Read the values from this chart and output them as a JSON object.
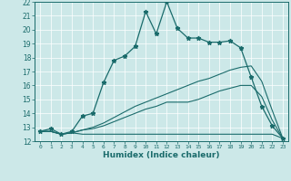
{
  "title": "",
  "xlabel": "Humidex (Indice chaleur)",
  "bg_color": "#cce8e8",
  "line_color": "#1a6b6b",
  "xlim": [
    -0.5,
    23.5
  ],
  "ylim": [
    12,
    22
  ],
  "xticks": [
    0,
    1,
    2,
    3,
    4,
    5,
    6,
    7,
    8,
    9,
    10,
    11,
    12,
    13,
    14,
    15,
    16,
    17,
    18,
    19,
    20,
    21,
    22,
    23
  ],
  "yticks": [
    12,
    13,
    14,
    15,
    16,
    17,
    18,
    19,
    20,
    21,
    22
  ],
  "line1_x": [
    0,
    1,
    2,
    3,
    4,
    5,
    6,
    7,
    8,
    9,
    10,
    11,
    12,
    13,
    14,
    15,
    16,
    17,
    18,
    19,
    20,
    21,
    22,
    23
  ],
  "line1_y": [
    12.7,
    12.9,
    12.5,
    12.7,
    13.8,
    14.0,
    16.2,
    17.8,
    18.1,
    18.8,
    21.3,
    19.7,
    22.0,
    20.1,
    19.4,
    19.4,
    19.1,
    19.1,
    19.2,
    18.7,
    16.6,
    14.5,
    13.1,
    12.2
  ],
  "line2_x": [
    0,
    1,
    2,
    3,
    4,
    5,
    6,
    7,
    8,
    9,
    10,
    11,
    12,
    13,
    14,
    15,
    16,
    17,
    18,
    19,
    20,
    21,
    22,
    23
  ],
  "line2_y": [
    12.7,
    12.7,
    12.5,
    12.6,
    12.8,
    13.0,
    13.3,
    13.7,
    14.1,
    14.5,
    14.8,
    15.1,
    15.4,
    15.7,
    16.0,
    16.3,
    16.5,
    16.8,
    17.1,
    17.3,
    17.4,
    16.3,
    14.2,
    12.2
  ],
  "line3_x": [
    0,
    1,
    2,
    3,
    4,
    5,
    6,
    7,
    8,
    9,
    10,
    11,
    12,
    13,
    14,
    15,
    16,
    17,
    18,
    19,
    20,
    21,
    22,
    23
  ],
  "line3_y": [
    12.7,
    12.7,
    12.5,
    12.6,
    12.8,
    12.9,
    13.1,
    13.4,
    13.7,
    14.0,
    14.3,
    14.5,
    14.8,
    14.8,
    14.8,
    15.0,
    15.3,
    15.6,
    15.8,
    16.0,
    16.0,
    15.2,
    13.5,
    12.2
  ],
  "line4_x": [
    0,
    1,
    2,
    3,
    4,
    5,
    6,
    7,
    8,
    9,
    10,
    11,
    12,
    13,
    14,
    15,
    16,
    17,
    18,
    19,
    20,
    21,
    22,
    23
  ],
  "line4_y": [
    12.7,
    12.7,
    12.5,
    12.6,
    12.5,
    12.5,
    12.5,
    12.5,
    12.5,
    12.5,
    12.5,
    12.5,
    12.5,
    12.5,
    12.5,
    12.5,
    12.5,
    12.5,
    12.5,
    12.5,
    12.5,
    12.5,
    12.5,
    12.2
  ]
}
